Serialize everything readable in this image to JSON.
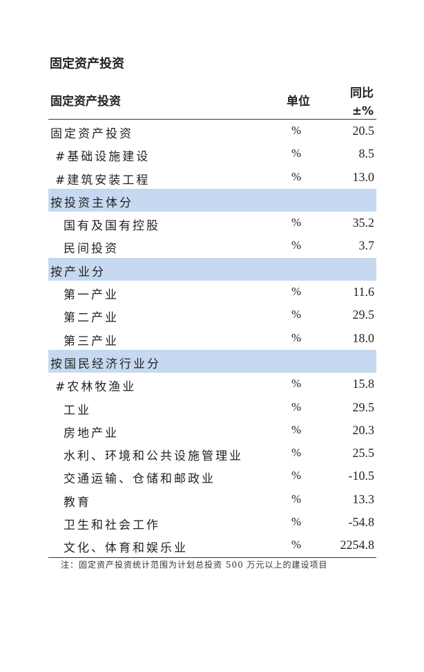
{
  "title": "固定资产投资",
  "header": {
    "name": "固定资产投资",
    "unit": "单位",
    "yoy_line1": "同比",
    "yoy_line2": "±%"
  },
  "rows": [
    {
      "name": "固定资产投资",
      "unit": "%",
      "value": "20.5",
      "indent": 0,
      "section": false
    },
    {
      "name": "#基础设施建设",
      "unit": "%",
      "value": "8.5",
      "indent": 1,
      "section": false
    },
    {
      "name": "#建筑安装工程",
      "unit": "%",
      "value": "13.0",
      "indent": 1,
      "section": false
    },
    {
      "name": "按投资主体分",
      "unit": "",
      "value": "",
      "indent": 0,
      "section": true
    },
    {
      "name": "国有及国有控股",
      "unit": "%",
      "value": "35.2",
      "indent": 2,
      "section": false
    },
    {
      "name": "民间投资",
      "unit": "%",
      "value": "3.7",
      "indent": 2,
      "section": false
    },
    {
      "name": "按产业分",
      "unit": "",
      "value": "",
      "indent": 0,
      "section": true
    },
    {
      "name": "第一产业",
      "unit": "%",
      "value": "11.6",
      "indent": 2,
      "section": false
    },
    {
      "name": "第二产业",
      "unit": "%",
      "value": "29.5",
      "indent": 2,
      "section": false
    },
    {
      "name": "第三产业",
      "unit": "%",
      "value": "18.0",
      "indent": 2,
      "section": false
    },
    {
      "name": "按国民经济行业分",
      "unit": "",
      "value": "",
      "indent": 0,
      "section": true
    },
    {
      "name": "#农林牧渔业",
      "unit": "%",
      "value": "15.8",
      "indent": 1,
      "section": false
    },
    {
      "name": "工业",
      "unit": "%",
      "value": "29.5",
      "indent": 2,
      "section": false
    },
    {
      "name": "房地产业",
      "unit": "%",
      "value": "20.3",
      "indent": 2,
      "section": false
    },
    {
      "name": "水利、环境和公共设施管理业",
      "unit": "%",
      "value": "25.5",
      "indent": 2,
      "section": false
    },
    {
      "name": "交通运输、仓储和邮政业",
      "unit": "%",
      "value": "-10.5",
      "indent": 2,
      "section": false
    },
    {
      "name": "教育",
      "unit": "%",
      "value": "13.3",
      "indent": 2,
      "section": false
    },
    {
      "name": "卫生和社会工作",
      "unit": "%",
      "value": "-54.8",
      "indent": 2,
      "section": false
    },
    {
      "name": "文化、体育和娱乐业",
      "unit": "%",
      "value": "2254.8",
      "indent": 2,
      "section": false
    }
  ],
  "note": "注：固定资产投资统计范围为计划总投资 500 万元以上的建设项目",
  "colors": {
    "section_bg": "#c6d9f1"
  }
}
